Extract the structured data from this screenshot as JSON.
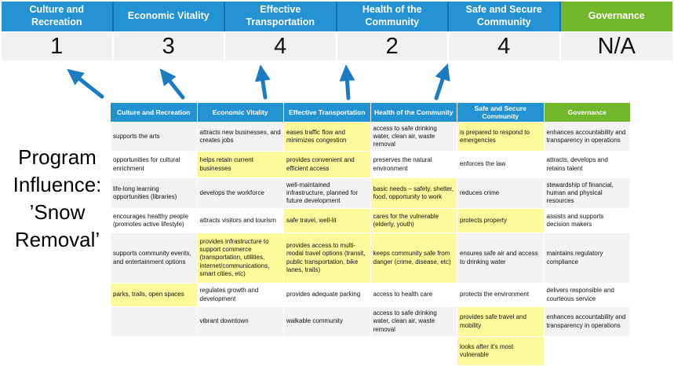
{
  "title": {
    "text": "Program Influence: ’Snow Removal’"
  },
  "colors": {
    "header_blue": "#2292D2",
    "header_green": "#72B62A",
    "score_bg": "#F1F1F1",
    "band_gray": "#F2F2F2",
    "highlight": "#FDFA9C",
    "arrow_blue": "#1B7CC3"
  },
  "summary": {
    "columns": [
      {
        "label": "Culture and Recreation",
        "score": "1",
        "green": false
      },
      {
        "label": "Economic Vitality",
        "score": "3",
        "green": false
      },
      {
        "label": "Effective Transportation",
        "score": "4",
        "green": false
      },
      {
        "label": "Health of the Community",
        "score": "2",
        "green": false
      },
      {
        "label": "Safe and Secure Community",
        "score": "4",
        "green": false
      },
      {
        "label": "Governance",
        "score": "N/A",
        "green": true
      }
    ]
  },
  "matrix": {
    "headers": [
      "Culture and Recreation",
      "Economic Vitality",
      "Effective Transportation",
      "Health of the Community",
      "Safe and Secure Community",
      "Governance"
    ],
    "rows": [
      [
        {
          "t": "supports the arts",
          "hl": false
        },
        {
          "t": "attracts new businesses, and creates jobs",
          "hl": false
        },
        {
          "t": "eases traffic flow and minimizes congestion",
          "hl": true
        },
        {
          "t": "access to safe drinking water, clean air, waste removal",
          "hl": false
        },
        {
          "t": "is prepared to respond to emergencies",
          "hl": true
        },
        {
          "t": "enhances accountability and transparency in operations",
          "hl": false
        }
      ],
      [
        {
          "t": "opportunities for cultural enrichment",
          "hl": false
        },
        {
          "t": "helps retain current businesses",
          "hl": true
        },
        {
          "t": "provides convenient and efficient access",
          "hl": true
        },
        {
          "t": "preserves the natural environment",
          "hl": false
        },
        {
          "t": "enforces the law",
          "hl": false
        },
        {
          "t": "attracts, develops and retains talent",
          "hl": false
        }
      ],
      [
        {
          "t": "life-long learning opportunities (libraries)",
          "hl": false
        },
        {
          "t": "develops the workforce",
          "hl": false
        },
        {
          "t": "well-maintained infrastructure, planned for future development",
          "hl": false
        },
        {
          "t": "basic needs – safety, shelter, food, opportunity to work",
          "hl": true
        },
        {
          "t": "reduces crime",
          "hl": false
        },
        {
          "t": "stewardship of financial, human and physical resources",
          "hl": false
        }
      ],
      [
        {
          "t": "encourages healthy people (promotes active lifestyle)",
          "hl": false
        },
        {
          "t": "attracts visitors and tourism",
          "hl": false
        },
        {
          "t": "safe travel, well-lit",
          "hl": true
        },
        {
          "t": "cares for the vulnerable (elderly, youth)",
          "hl": true
        },
        {
          "t": "protects property",
          "hl": true
        },
        {
          "t": "assists and supports decision makers",
          "hl": false
        }
      ],
      [
        {
          "t": "supports community events, and entertainment options",
          "hl": false
        },
        {
          "t": "provides infrastructure to support commerce (transportation, utilities, internet/communications, smart cities, etc)",
          "hl": true
        },
        {
          "t": "provides access to multi-modal travel options (transit, public transportation, bike lanes, trails)",
          "hl": true
        },
        {
          "t": "keeps community safe from danger (crime, disease, etc)",
          "hl": true
        },
        {
          "t": "ensures safe air and access to drinking water",
          "hl": false
        },
        {
          "t": "maintains regulatory compliance",
          "hl": false
        }
      ],
      [
        {
          "t": "parks, trails, open spaces",
          "hl": true
        },
        {
          "t": "regulates growth and development",
          "hl": false
        },
        {
          "t": "provides adequate parking",
          "hl": false
        },
        {
          "t": "access to health care",
          "hl": false
        },
        {
          "t": "protects the environment",
          "hl": false
        },
        {
          "t": "delivers responsible and courteous service",
          "hl": false
        }
      ],
      [
        {
          "t": "",
          "hl": false
        },
        {
          "t": "vibrant downtown",
          "hl": false
        },
        {
          "t": "walkable community",
          "hl": false
        },
        {
          "t": "access to safe drinking water, clean air, waste removal",
          "hl": false
        },
        {
          "t": "provides safe travel and mobility",
          "hl": true
        },
        {
          "t": "enhances accountability and transparency in operations",
          "hl": false
        }
      ],
      [
        {
          "t": "",
          "hl": false
        },
        {
          "t": "",
          "hl": false
        },
        {
          "t": "",
          "hl": false
        },
        {
          "t": "",
          "hl": false
        },
        {
          "t": "looks after it's most vulnerable",
          "hl": true
        },
        {
          "t": "",
          "hl": false
        }
      ]
    ]
  }
}
